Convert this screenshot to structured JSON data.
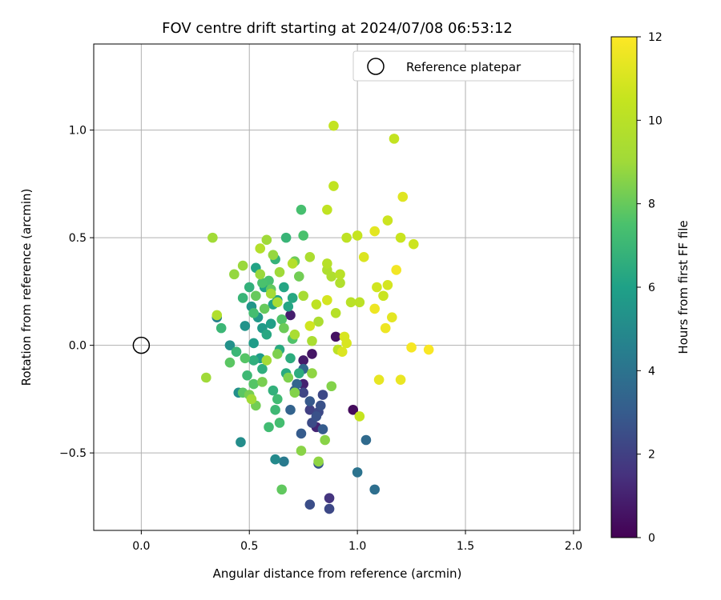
{
  "chart_data": {
    "type": "scatter",
    "title": "FOV centre drift starting at 2024/07/08 06:53:12",
    "xlabel": "Angular distance from reference (arcmin)",
    "ylabel": "Rotation from reference (arcmin)",
    "xlim": [
      -0.22,
      2.03
    ],
    "ylim": [
      -0.86,
      1.4
    ],
    "xticks": [
      0.0,
      0.5,
      1.0,
      1.5,
      2.0
    ],
    "xtick_labels": [
      "0.0",
      "0.5",
      "1.0",
      "1.5",
      "2.0"
    ],
    "yticks": [
      -0.5,
      0.0,
      0.5,
      1.0
    ],
    "ytick_labels": [
      "−0.5",
      "0.0",
      "0.5",
      "1.0"
    ],
    "grid": true,
    "legend": {
      "position": "top-right",
      "entries": [
        "Reference platepar"
      ]
    },
    "reference_point": {
      "x": 0.0,
      "y": 0.0
    },
    "colorbar": {
      "label": "Hours from first FF file",
      "range": [
        0,
        12
      ],
      "ticks": [
        0,
        2,
        4,
        6,
        8,
        10,
        12
      ],
      "colormap": "viridis"
    },
    "points": [
      [
        0.98,
        -0.3,
        0.3
      ],
      [
        0.9,
        0.04,
        0.5
      ],
      [
        0.79,
        -0.04,
        0.6
      ],
      [
        0.75,
        -0.07,
        0.8
      ],
      [
        0.69,
        0.14,
        0.9
      ],
      [
        0.75,
        -0.18,
        1.0
      ],
      [
        0.81,
        -0.38,
        1.1
      ],
      [
        0.87,
        -0.71,
        1.6
      ],
      [
        0.78,
        -0.3,
        2.0
      ],
      [
        0.75,
        -0.22,
        2.2
      ],
      [
        0.82,
        -0.31,
        2.3
      ],
      [
        0.79,
        -0.36,
        2.4
      ],
      [
        0.87,
        -0.76,
        2.3
      ],
      [
        0.78,
        -0.74,
        2.5
      ],
      [
        0.84,
        -0.23,
        2.3
      ],
      [
        0.81,
        -0.33,
        2.6
      ],
      [
        0.83,
        -0.28,
        2.6
      ],
      [
        0.74,
        -0.41,
        3.0
      ],
      [
        0.82,
        -0.55,
        2.8
      ],
      [
        0.78,
        -0.26,
        2.9
      ],
      [
        0.84,
        -0.39,
        3.0
      ],
      [
        0.71,
        -0.21,
        3.2
      ],
      [
        0.69,
        -0.3,
        3.3
      ],
      [
        0.72,
        -0.18,
        3.4
      ],
      [
        0.75,
        -0.11,
        3.5
      ],
      [
        1.04,
        -0.44,
        3.6
      ],
      [
        1.08,
        -0.67,
        3.8
      ],
      [
        1.0,
        -0.59,
        4.0
      ],
      [
        0.66,
        -0.54,
        4.3
      ],
      [
        0.35,
        0.13,
        4.5
      ],
      [
        0.62,
        -0.53,
        5.0
      ],
      [
        0.46,
        -0.45,
        5.1
      ],
      [
        0.45,
        -0.22,
        5.2
      ],
      [
        0.41,
        0.0,
        5.3
      ],
      [
        0.48,
        0.09,
        5.4
      ],
      [
        0.51,
        0.18,
        5.5
      ],
      [
        0.54,
        0.13,
        5.6
      ],
      [
        0.56,
        0.08,
        5.7
      ],
      [
        0.52,
        0.01,
        5.8
      ],
      [
        0.55,
        -0.06,
        5.8
      ],
      [
        0.6,
        0.1,
        5.9
      ],
      [
        0.63,
        0.21,
        6.0
      ],
      [
        0.57,
        0.27,
        6.0
      ],
      [
        0.61,
        0.19,
        6.1
      ],
      [
        0.53,
        0.36,
        6.1
      ],
      [
        0.66,
        0.27,
        6.2
      ],
      [
        0.68,
        0.18,
        6.2
      ],
      [
        0.7,
        0.22,
        6.3
      ],
      [
        0.58,
        0.05,
        6.3
      ],
      [
        0.64,
        -0.02,
        6.4
      ],
      [
        0.67,
        -0.13,
        6.4
      ],
      [
        0.69,
        -0.06,
        6.5
      ],
      [
        0.73,
        -0.13,
        6.5
      ],
      [
        0.52,
        -0.07,
        6.6
      ],
      [
        0.56,
        -0.11,
        6.6
      ],
      [
        0.61,
        -0.21,
        6.7
      ],
      [
        0.5,
        0.27,
        6.7
      ],
      [
        0.62,
        0.4,
        6.8
      ],
      [
        0.67,
        0.5,
        6.9
      ],
      [
        0.47,
        0.22,
        6.9
      ],
      [
        0.37,
        0.08,
        7.0
      ],
      [
        0.44,
        -0.03,
        7.0
      ],
      [
        0.49,
        -0.14,
        7.1
      ],
      [
        0.62,
        -0.3,
        7.1
      ],
      [
        0.63,
        -0.25,
        7.2
      ],
      [
        0.59,
        -0.38,
        7.2
      ],
      [
        0.64,
        -0.36,
        7.3
      ],
      [
        0.52,
        0.15,
        7.3
      ],
      [
        0.59,
        0.3,
        7.4
      ],
      [
        0.74,
        0.63,
        7.4
      ],
      [
        0.75,
        0.51,
        7.5
      ],
      [
        0.56,
        0.29,
        7.5
      ],
      [
        0.65,
        0.12,
        7.6
      ],
      [
        0.7,
        0.03,
        7.6
      ],
      [
        0.48,
        -0.06,
        7.7
      ],
      [
        0.52,
        -0.18,
        7.7
      ],
      [
        0.47,
        -0.22,
        7.8
      ],
      [
        0.41,
        -0.08,
        7.8
      ],
      [
        0.65,
        -0.67,
        7.9
      ],
      [
        0.6,
        0.26,
        7.9
      ],
      [
        0.53,
        0.23,
        8.0
      ],
      [
        0.57,
        0.17,
        8.0
      ],
      [
        0.66,
        0.08,
        8.1
      ],
      [
        0.71,
        0.39,
        8.1
      ],
      [
        0.73,
        0.32,
        8.2
      ],
      [
        0.53,
        -0.28,
        8.2
      ],
      [
        0.5,
        -0.23,
        8.3
      ],
      [
        0.56,
        -0.17,
        8.3
      ],
      [
        0.63,
        -0.04,
        8.4
      ],
      [
        0.68,
        -0.15,
        8.4
      ],
      [
        0.71,
        -0.22,
        8.5
      ],
      [
        0.88,
        -0.19,
        8.5
      ],
      [
        0.85,
        -0.44,
        8.6
      ],
      [
        0.74,
        -0.49,
        8.6
      ],
      [
        0.82,
        -0.54,
        8.7
      ],
      [
        0.79,
        -0.13,
        8.7
      ],
      [
        0.61,
        0.42,
        8.8
      ],
      [
        0.43,
        0.33,
        8.8
      ],
      [
        0.47,
        0.37,
        8.9
      ],
      [
        0.55,
        0.33,
        8.9
      ],
      [
        0.58,
        0.49,
        9.0
      ],
      [
        0.64,
        0.34,
        9.0
      ],
      [
        0.3,
        -0.15,
        9.0
      ],
      [
        0.33,
        0.5,
        9.1
      ],
      [
        0.51,
        -0.25,
        9.1
      ],
      [
        0.58,
        -0.07,
        9.2
      ],
      [
        0.6,
        0.24,
        9.2
      ],
      [
        0.63,
        0.2,
        9.3
      ],
      [
        0.75,
        0.23,
        9.3
      ],
      [
        0.71,
        0.05,
        9.4
      ],
      [
        0.79,
        0.02,
        9.4
      ],
      [
        0.78,
        0.41,
        9.5
      ],
      [
        0.82,
        0.11,
        9.5
      ],
      [
        0.86,
        0.35,
        9.6
      ],
      [
        0.88,
        0.32,
        9.6
      ],
      [
        0.92,
        0.29,
        9.7
      ],
      [
        0.35,
        0.14,
        9.7
      ],
      [
        0.55,
        0.45,
        9.8
      ],
      [
        0.7,
        0.38,
        9.8
      ],
      [
        0.9,
        0.15,
        9.9
      ],
      [
        0.86,
        0.38,
        9.9
      ],
      [
        0.92,
        0.33,
        10.0
      ],
      [
        0.97,
        0.2,
        10.0
      ],
      [
        1.01,
        0.2,
        10.1
      ],
      [
        0.91,
        -0.02,
        10.1
      ],
      [
        0.81,
        0.19,
        10.2
      ],
      [
        0.95,
        0.5,
        10.2
      ],
      [
        0.86,
        0.63,
        10.3
      ],
      [
        0.89,
        0.74,
        10.3
      ],
      [
        0.89,
        1.02,
        10.4
      ],
      [
        1.17,
        0.96,
        10.4
      ],
      [
        1.01,
        -0.33,
        10.5
      ],
      [
        1.0,
        0.51,
        10.5
      ],
      [
        1.12,
        0.23,
        10.6
      ],
      [
        1.2,
        0.5,
        10.6
      ],
      [
        1.26,
        0.47,
        10.7
      ],
      [
        1.14,
        0.58,
        10.7
      ],
      [
        1.09,
        0.27,
        10.8
      ],
      [
        1.14,
        0.28,
        10.9
      ],
      [
        0.94,
        0.04,
        11.0
      ],
      [
        0.95,
        0.01,
        11.0
      ],
      [
        0.93,
        -0.03,
        11.1
      ],
      [
        1.03,
        0.41,
        11.1
      ],
      [
        1.21,
        0.69,
        11.2
      ],
      [
        1.08,
        0.53,
        11.3
      ],
      [
        1.16,
        0.13,
        11.3
      ],
      [
        1.1,
        -0.16,
        11.4
      ],
      [
        1.2,
        -0.16,
        11.5
      ],
      [
        1.13,
        0.08,
        11.6
      ],
      [
        1.08,
        0.17,
        11.6
      ],
      [
        1.18,
        0.35,
        11.7
      ],
      [
        1.25,
        -0.01,
        11.8
      ],
      [
        1.33,
        -0.02,
        11.9
      ],
      [
        0.78,
        0.09,
        10.8
      ],
      [
        0.86,
        0.21,
        10.9
      ]
    ]
  }
}
